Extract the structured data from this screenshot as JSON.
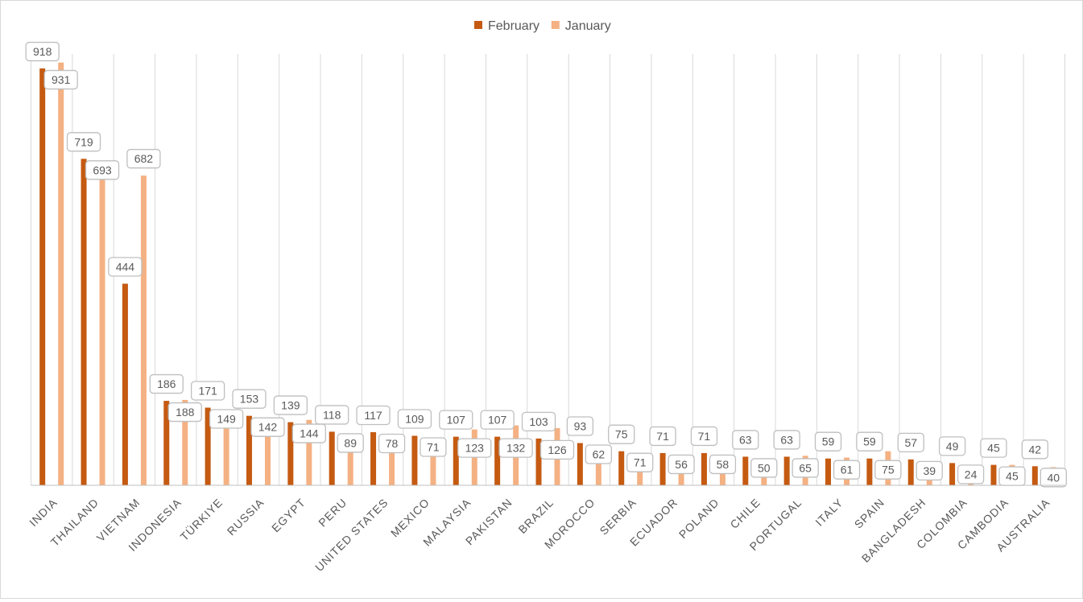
{
  "chart_data": {
    "type": "bar",
    "title": "",
    "xlabel": "",
    "ylabel": "",
    "legend_position": "top",
    "grid": true,
    "ylim": [
      0,
      950
    ],
    "categories": [
      "INDIA",
      "THAILAND",
      "VIETNAM",
      "INDONESIA",
      "TÜRKIYE",
      "RUSSIA",
      "EGYPT",
      "PERU",
      "UNITED STATES",
      "MEXICO",
      "MALAYSIA",
      "PAKISTAN",
      "BRAZIL",
      "MOROCCO",
      "SERBIA",
      "ECUADOR",
      "POLAND",
      "CHILE",
      "PORTUGAL",
      "ITALY",
      "SPAIN",
      "BANGLADESH",
      "COLOMBIA",
      "CAMBODIA",
      "AUSTRALIA"
    ],
    "series": [
      {
        "name": "February",
        "color": "#C55A11",
        "values": [
          918,
          719,
          444,
          186,
          171,
          153,
          139,
          118,
          117,
          109,
          107,
          107,
          103,
          93,
          75,
          71,
          71,
          63,
          63,
          59,
          59,
          57,
          49,
          45,
          42
        ]
      },
      {
        "name": "January",
        "color": "#F4B183",
        "values": [
          931,
          693,
          682,
          188,
          149,
          142,
          144,
          89,
          78,
          71,
          123,
          132,
          126,
          62,
          71,
          56,
          58,
          50,
          65,
          61,
          75,
          39,
          24,
          45,
          40
        ]
      }
    ]
  }
}
